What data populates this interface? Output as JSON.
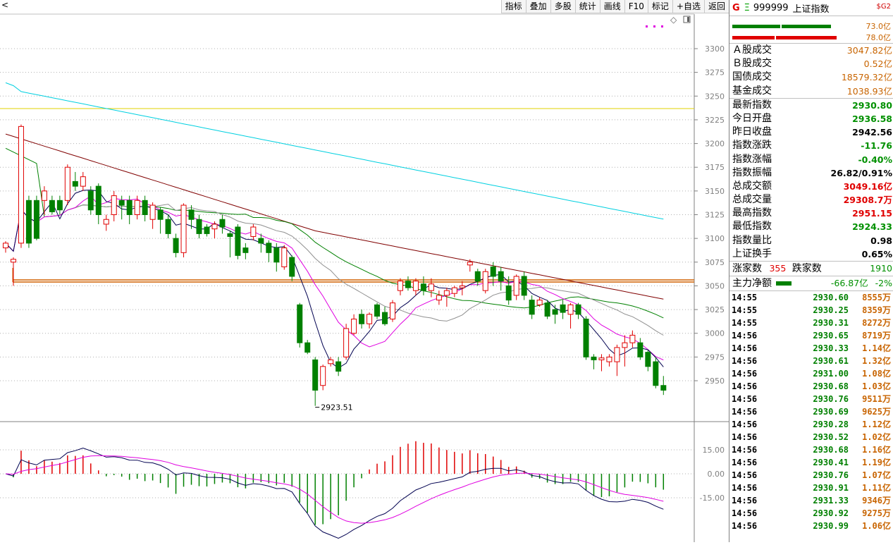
{
  "toolbar": {
    "items": [
      "指标",
      "叠加",
      "多股",
      "统计",
      "画线",
      "F10",
      "标记",
      "+自选",
      "返回"
    ]
  },
  "chart": {
    "price_ticks": [
      "3300",
      "3275",
      "3250",
      "3225",
      "3200",
      "3175",
      "3150",
      "3125",
      "3100",
      "3075",
      "3050",
      "3025",
      "3000",
      "2975",
      "2950"
    ],
    "low_label": "2923.51",
    "macd_ticks": [
      "15.00",
      "0.00",
      "-15.00"
    ],
    "colors": {
      "up": "#e00000",
      "down": "#008000",
      "ma5": "#000050",
      "ma10": "#e000e0",
      "ma20": "#909090",
      "ma30": "#008000",
      "ma60": "#800000",
      "ma120": "#00d0e0",
      "hline_yellow": "#e0d000",
      "hline_orange": "#d06000"
    }
  },
  "chart_data": {
    "type": "candlestick",
    "title": "999999 上证指数",
    "ylim": [
      2915,
      3315
    ],
    "low_annotation": 2923.51,
    "candles": [
      [
        3090,
        3095,
        3085,
        3097
      ],
      [
        3075,
        3078,
        3050,
        3080
      ],
      [
        3095,
        3218,
        3090,
        3220
      ],
      [
        3140,
        3095,
        3090,
        3145
      ],
      [
        3140,
        3100,
        3098,
        3145
      ],
      [
        3140,
        3150,
        3125,
        3155
      ],
      [
        3140,
        3128,
        3125,
        3145
      ],
      [
        3140,
        3130,
        3125,
        3145
      ],
      [
        3140,
        3175,
        3135,
        3178
      ],
      [
        3160,
        3155,
        3150,
        3170
      ],
      [
        3155,
        3165,
        3150,
        3170
      ],
      [
        3150,
        3130,
        3125,
        3155
      ],
      [
        3155,
        3125,
        3115,
        3158
      ],
      [
        3115,
        3120,
        3108,
        3125
      ],
      [
        3125,
        3145,
        3118,
        3150
      ],
      [
        3140,
        3135,
        3120,
        3145
      ],
      [
        3140,
        3125,
        3115,
        3145
      ],
      [
        3125,
        3140,
        3120,
        3145
      ],
      [
        3140,
        3125,
        3118,
        3145
      ],
      [
        3120,
        3135,
        3110,
        3138
      ],
      [
        3130,
        3120,
        3105,
        3133
      ],
      [
        3120,
        3105,
        3100,
        3125
      ],
      [
        3100,
        3085,
        3080,
        3105
      ],
      [
        3085,
        3135,
        3080,
        3137
      ],
      [
        3130,
        3120,
        3110,
        3135
      ],
      [
        3120,
        3105,
        3100,
        3125
      ],
      [
        3112,
        3105,
        3102,
        3115
      ],
      [
        3110,
        3115,
        3100,
        3118
      ],
      [
        3120,
        3112,
        3105,
        3125
      ],
      [
        3105,
        3102,
        3080,
        3108
      ],
      [
        3112,
        3082,
        3078,
        3115
      ],
      [
        3090,
        3085,
        3078,
        3095
      ],
      [
        3102,
        3112,
        3098,
        3115
      ],
      [
        3100,
        3095,
        3085,
        3105
      ],
      [
        3095,
        3085,
        3075,
        3098
      ],
      [
        3090,
        3075,
        3065,
        3095
      ],
      [
        3070,
        3090,
        3067,
        3093
      ],
      [
        3080,
        3060,
        3055,
        3082
      ],
      [
        3030,
        2990,
        2985,
        3032
      ],
      [
        2990,
        2980,
        2978,
        2993
      ],
      [
        2972,
        2940,
        2923.51,
        2975
      ],
      [
        2945,
        2965,
        2940,
        2967
      ],
      [
        2968,
        2972,
        2965,
        2975
      ],
      [
        2970,
        2960,
        2955,
        2975
      ],
      [
        2975,
        3005,
        2972,
        3010
      ],
      [
        3000,
        3015,
        2998,
        3020
      ],
      [
        3020,
        3010,
        3005,
        3025
      ],
      [
        3010,
        3020,
        3005,
        3022
      ],
      [
        3030,
        3018,
        3015,
        3032
      ],
      [
        3022,
        3010,
        3008,
        3028
      ],
      [
        3015,
        3032,
        3012,
        3035
      ],
      [
        3045,
        3055,
        3040,
        3058
      ],
      [
        3055,
        3048,
        3045,
        3060
      ],
      [
        3045,
        3055,
        3040,
        3058
      ],
      [
        3052,
        3045,
        3040,
        3060
      ],
      [
        3045,
        3052,
        3038,
        3058
      ],
      [
        3035,
        3040,
        3030,
        3045
      ],
      [
        3040,
        3045,
        3028,
        3048
      ],
      [
        3042,
        3048,
        3038,
        3050
      ],
      [
        3048,
        3050,
        3040,
        3055
      ],
      [
        3072,
        3075,
        3065,
        3078
      ],
      [
        3065,
        3055,
        3050,
        3068
      ],
      [
        3045,
        3065,
        3042,
        3068
      ],
      [
        3070,
        3060,
        3050,
        3075
      ],
      [
        3065,
        3055,
        3045,
        3070
      ],
      [
        3050,
        3035,
        3030,
        3060
      ],
      [
        3040,
        3060,
        3035,
        3062
      ],
      [
        3060,
        3040,
        3035,
        3065
      ],
      [
        3035,
        3020,
        3015,
        3040
      ],
      [
        3030,
        3035,
        3028,
        3038
      ],
      [
        3032,
        3018,
        3015,
        3035
      ],
      [
        3025,
        3020,
        3010,
        3030
      ],
      [
        3030,
        3022,
        3015,
        3035
      ],
      [
        3020,
        3030,
        3005,
        3032
      ],
      [
        3030,
        3020,
        3015,
        3032
      ],
      [
        3015,
        2975,
        2972,
        3018
      ],
      [
        2975,
        2972,
        2962,
        2978
      ],
      [
        2972,
        2974,
        2960,
        2978
      ],
      [
        2970,
        2975,
        2965,
        2978
      ],
      [
        2970,
        2985,
        2955,
        2988
      ],
      [
        2985,
        2990,
        2965,
        2998
      ],
      [
        2990,
        2998,
        2985,
        3003
      ],
      [
        2990,
        2975,
        2972,
        2995
      ],
      [
        2980,
        2965,
        2960,
        2982
      ],
      [
        2970,
        2945,
        2942,
        2975
      ],
      [
        2945,
        2940,
        2935,
        2955
      ]
    ],
    "macd_ylim": [
      -36,
      27
    ]
  },
  "panel": {
    "header": {
      "g": "G",
      "eq": "Ξ",
      "code": "999999",
      "name": "上证指数",
      "sg": "$G2"
    },
    "bar_values": {
      "top": "73.0亿",
      "bottom": "78.0亿"
    },
    "turnover": [
      {
        "label": "Ａ股成交",
        "value": "3047.82亿"
      },
      {
        "label": "Ｂ股成交",
        "value": "0.52亿"
      },
      {
        "label": "国债成交",
        "value": "18579.32亿"
      },
      {
        "label": "基金成交",
        "value": "1038.93亿"
      }
    ],
    "stats": [
      {
        "label": "最新指数",
        "value": "2930.80",
        "color": "green"
      },
      {
        "label": "今日开盘",
        "value": "2936.58",
        "color": "green"
      },
      {
        "label": "昨日收盘",
        "value": "2942.56",
        "color": "blk"
      },
      {
        "label": "指数涨跌",
        "value": "-11.76",
        "color": "green"
      },
      {
        "label": "指数涨幅",
        "value": "-0.40%",
        "color": "green"
      },
      {
        "label": "指数振幅",
        "value": "26.82/0.91%",
        "color": "blk"
      },
      {
        "label": "总成交额",
        "value": "3049.16亿",
        "color": "red"
      },
      {
        "label": "总成交量",
        "value": "29308.7万",
        "color": "red"
      },
      {
        "label": "最高指数",
        "value": "2951.15",
        "color": "red"
      },
      {
        "label": "最低指数",
        "value": "2924.33",
        "color": "green"
      },
      {
        "label": "指数量比",
        "value": "0.98",
        "color": "blk"
      },
      {
        "label": "上证换手",
        "value": "0.65%",
        "color": "blk"
      }
    ],
    "breadth": {
      "up_label": "涨家数",
      "up_value": "355",
      "down_label": "跌家数",
      "down_value": "1910"
    },
    "mainforce": {
      "label": "主力净额",
      "value": "-66.87亿",
      "pct": "-2%"
    },
    "trades": [
      [
        "14:55",
        "2930.60",
        "8555万"
      ],
      [
        "14:55",
        "2930.25",
        "8359万"
      ],
      [
        "14:55",
        "2930.31",
        "8272万"
      ],
      [
        "14:56",
        "2930.65",
        "8719万"
      ],
      [
        "14:56",
        "2930.33",
        "1.14亿"
      ],
      [
        "14:56",
        "2930.61",
        "1.32亿"
      ],
      [
        "14:56",
        "2931.00",
        "1.08亿"
      ],
      [
        "14:56",
        "2930.68",
        "1.03亿"
      ],
      [
        "14:56",
        "2930.76",
        "9511万"
      ],
      [
        "14:56",
        "2930.69",
        "9625万"
      ],
      [
        "14:56",
        "2930.28",
        "1.12亿"
      ],
      [
        "14:56",
        "2930.52",
        "1.02亿"
      ],
      [
        "14:56",
        "2930.68",
        "1.16亿"
      ],
      [
        "14:56",
        "2930.41",
        "1.19亿"
      ],
      [
        "14:56",
        "2930.76",
        "1.07亿"
      ],
      [
        "14:56",
        "2930.91",
        "1.11亿"
      ],
      [
        "14:56",
        "2931.33",
        "9346万"
      ],
      [
        "14:56",
        "2930.92",
        "9275万"
      ],
      [
        "14:56",
        "2930.99",
        "1.06亿"
      ]
    ]
  }
}
